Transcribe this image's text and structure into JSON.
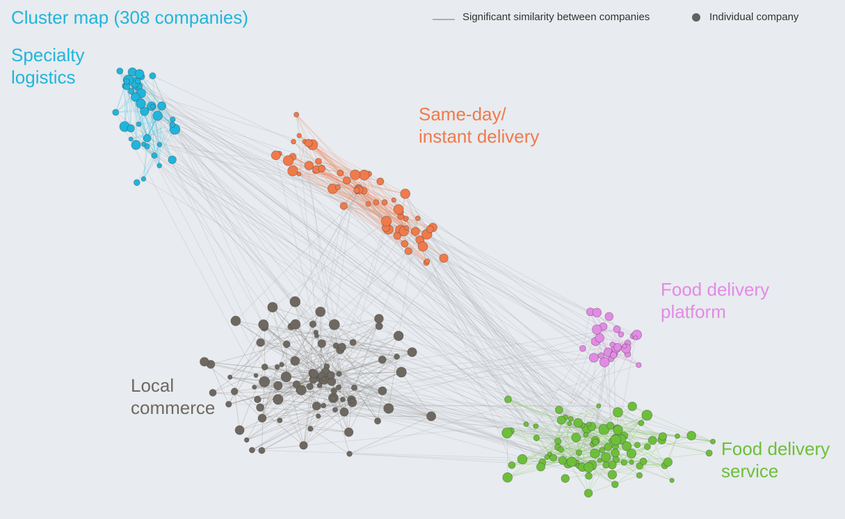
{
  "title": "Cluster map (308 companies)",
  "legend": {
    "edge_label": "Significant similarity between companies",
    "node_label": "Individual company",
    "edge_color": "#a9b0b5",
    "node_color": "#5d6360"
  },
  "clusters": [
    {
      "id": "specialty",
      "line1": "Specialty",
      "line2": "logistics",
      "color": "#1fb5dc",
      "center": [
        230,
        190
      ],
      "spread": [
        55,
        75
      ]
    },
    {
      "id": "sameday",
      "line1": "Same-day/",
      "line2": "instant delivery",
      "color": "#f07a4a",
      "center": [
        520,
        260
      ],
      "spread": [
        90,
        70
      ]
    },
    {
      "id": "platform",
      "line1": "Food delivery",
      "line2": "platform",
      "color": "#e48ae6",
      "center": [
        880,
        490
      ],
      "spread": [
        45,
        35
      ]
    },
    {
      "id": "local",
      "line1": "Local",
      "line2": "commerce",
      "color": "#6e6860",
      "center": [
        450,
        540
      ],
      "spread": [
        120,
        95
      ]
    },
    {
      "id": "service",
      "line1": "Food delivery",
      "line2": "service",
      "color": "#6dbf3a",
      "center": [
        870,
        640
      ],
      "spread": [
        130,
        55
      ]
    }
  ]
}
